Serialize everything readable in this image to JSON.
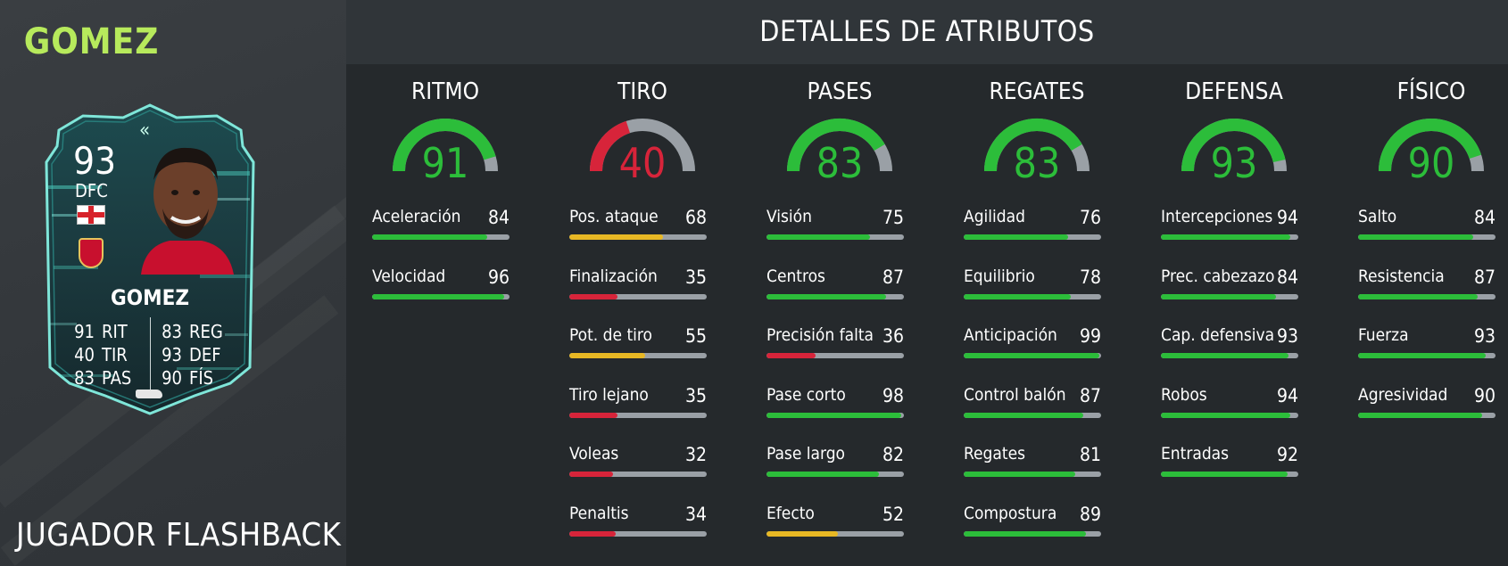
{
  "player": {
    "title": "GOMEZ",
    "footer_label": "JUGADOR FLASHBACK",
    "card": {
      "rating": "93",
      "position": "DFC",
      "name": "GOMEZ",
      "flag_icon": "england-flag-icon",
      "club_icon": "liverpool-crest-icon",
      "stats": [
        {
          "value": "91",
          "label": "RIT"
        },
        {
          "value": "40",
          "label": "TIR"
        },
        {
          "value": "83",
          "label": "PAS"
        },
        {
          "value": "83",
          "label": "REG"
        },
        {
          "value": "93",
          "label": "DEF"
        },
        {
          "value": "90",
          "label": "FÍS"
        }
      ]
    }
  },
  "header": {
    "title": "DETALLES DE ATRIBUTOS"
  },
  "colors": {
    "green": "#2cbd3a",
    "yellow": "#e8b824",
    "red": "#d7243a",
    "track": "#9aa0a6",
    "title_green": "#b7ea5c"
  },
  "categories": [
    {
      "name": "RITMO",
      "value": "91",
      "attributes": [
        {
          "name": "Aceleración",
          "value": "84"
        },
        {
          "name": "Velocidad",
          "value": "96"
        }
      ]
    },
    {
      "name": "TIRO",
      "value": "40",
      "attributes": [
        {
          "name": "Pos. ataque",
          "value": "68"
        },
        {
          "name": "Finalización",
          "value": "35"
        },
        {
          "name": "Pot. de tiro",
          "value": "55"
        },
        {
          "name": "Tiro lejano",
          "value": "35"
        },
        {
          "name": "Voleas",
          "value": "32"
        },
        {
          "name": "Penaltis",
          "value": "34"
        }
      ]
    },
    {
      "name": "PASES",
      "value": "83",
      "attributes": [
        {
          "name": "Visión",
          "value": "75"
        },
        {
          "name": "Centros",
          "value": "87"
        },
        {
          "name": "Precisión falta",
          "value": "36"
        },
        {
          "name": "Pase corto",
          "value": "98"
        },
        {
          "name": "Pase largo",
          "value": "82"
        },
        {
          "name": "Efecto",
          "value": "52"
        }
      ]
    },
    {
      "name": "REGATES",
      "value": "83",
      "attributes": [
        {
          "name": "Agilidad",
          "value": "76"
        },
        {
          "name": "Equilibrio",
          "value": "78"
        },
        {
          "name": "Anticipación",
          "value": "99"
        },
        {
          "name": "Control balón",
          "value": "87"
        },
        {
          "name": "Regates",
          "value": "81"
        },
        {
          "name": "Compostura",
          "value": "89"
        }
      ]
    },
    {
      "name": "DEFENSA",
      "value": "93",
      "attributes": [
        {
          "name": "Intercepciones",
          "value": "94"
        },
        {
          "name": "Prec. cabezazo",
          "value": "84"
        },
        {
          "name": "Cap. defensiva",
          "value": "93"
        },
        {
          "name": "Robos",
          "value": "94"
        },
        {
          "name": "Entradas",
          "value": "92"
        }
      ]
    },
    {
      "name": "FÍSICO",
      "value": "90",
      "attributes": [
        {
          "name": "Salto",
          "value": "84"
        },
        {
          "name": "Resistencia",
          "value": "87"
        },
        {
          "name": "Fuerza",
          "value": "93"
        },
        {
          "name": "Agresividad",
          "value": "90"
        }
      ]
    }
  ]
}
